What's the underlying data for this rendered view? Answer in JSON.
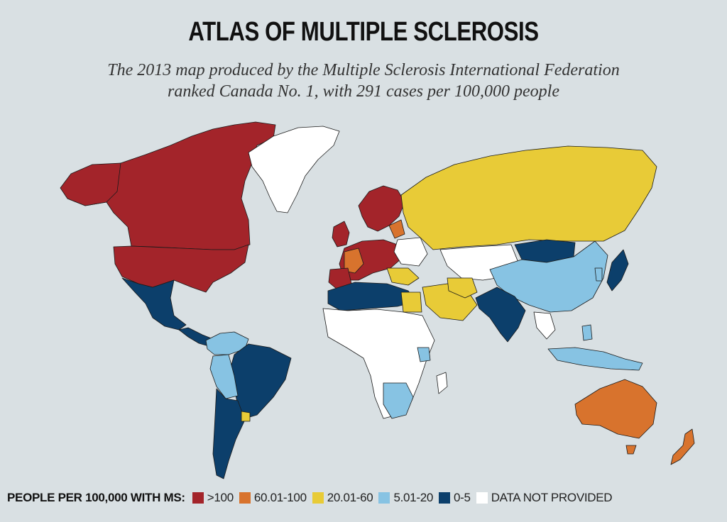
{
  "title": "ATLAS OF MULTIPLE SCLEROSIS",
  "subtitle_line1": "The 2013 map produced by the Multiple Sclerosis International Federation",
  "subtitle_line2": "ranked Canada No. 1, with 291 cases per 100,000 people",
  "legend": {
    "title": "PEOPLE PER 100,000 WITH MS:",
    "items": [
      {
        "label": ">100",
        "color": "#a3242a"
      },
      {
        "label": "60.01-100",
        "color": "#d8732d"
      },
      {
        "label": "20.01-60",
        "color": "#e8cb37"
      },
      {
        "label": "5.01-20",
        "color": "#87c3e3"
      },
      {
        "label": "0-5",
        "color": "#0c3f6b"
      },
      {
        "label": "DATA NOT PROVIDED",
        "color": "#ffffff"
      }
    ]
  },
  "colors": {
    "background": "#d9e0e3",
    "high": "#a3242a",
    "upper_mid": "#d8732d",
    "mid": "#e8cb37",
    "low_mid": "#87c3e3",
    "low": "#0c3f6b",
    "no_data": "#ffffff"
  }
}
